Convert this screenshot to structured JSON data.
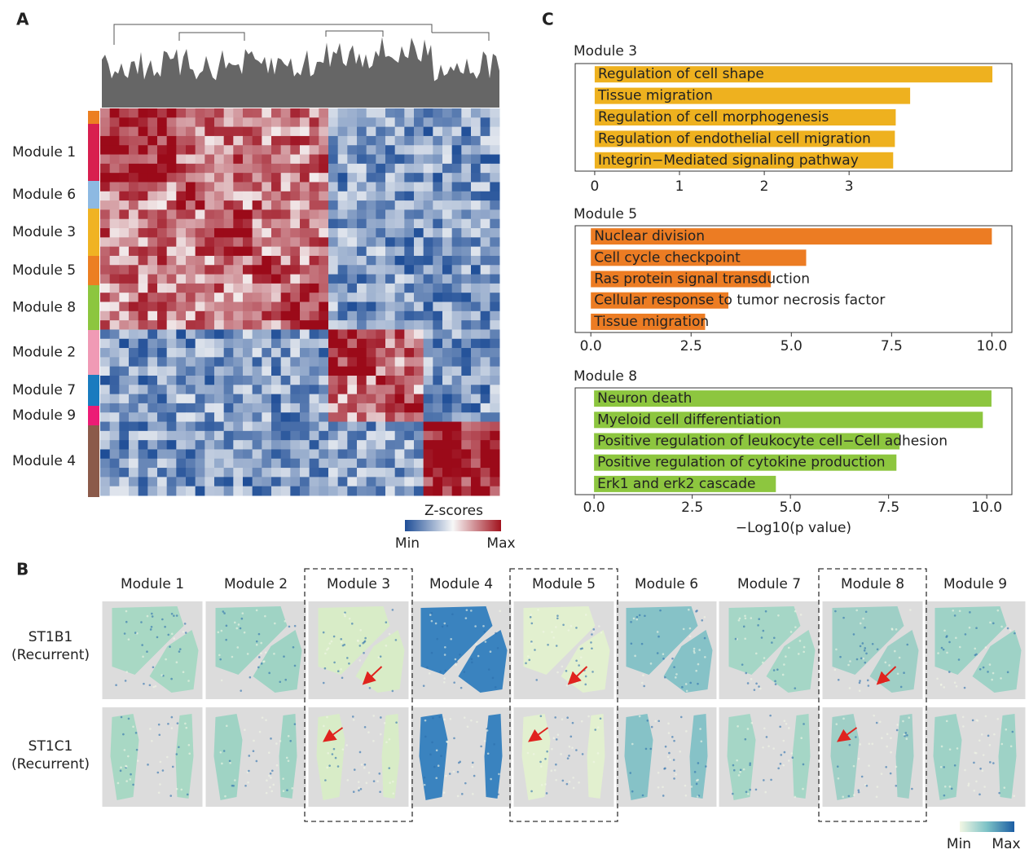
{
  "panel_labels": [
    "A",
    "B",
    "C"
  ],
  "heatmap": {
    "module_labels": [
      "Module 1",
      "Module 6",
      "Module 3",
      "Module 5",
      "Module 8",
      "Module 2",
      "Module 7",
      "Module 9",
      "Module 4"
    ],
    "module_colors": [
      "#d81f4f",
      "#8db9e2",
      "#f0b323",
      "#ec7f22",
      "#8cc63f",
      "#f09ab5",
      "#1a7bbf",
      "#ec1c75",
      "#8b5a4a"
    ],
    "colorbar_title": "Z-scores",
    "colorbar_min": "Min",
    "colorbar_max": "Max"
  },
  "spatial": {
    "modules": [
      "Module 1",
      "Module 2",
      "Module 3",
      "Module 4",
      "Module 5",
      "Module 6",
      "Module 7",
      "Module 8",
      "Module 9"
    ],
    "samples": [
      {
        "id": "ST1B1",
        "note": "(Recurrent)"
      },
      {
        "id": "ST1C1",
        "note": "(Recurrent)"
      }
    ],
    "colorbar_min": "Min",
    "colorbar_max": "Max"
  },
  "chart_data": [
    {
      "type": "bar",
      "orientation": "horizontal",
      "title": "Module 3",
      "color": "#eeb11f",
      "categories": [
        "Regulation of cell shape",
        "Tissue migration",
        "Regulation of cell morphogenesis",
        "Regulation of endothelial cell migration",
        "Integrin−Mediated signaling pathway"
      ],
      "values": [
        4.69,
        3.72,
        3.55,
        3.54,
        3.52
      ],
      "xlim": [
        -0.23,
        4.92
      ],
      "xticks": [
        0,
        1,
        2,
        3
      ]
    },
    {
      "type": "bar",
      "orientation": "horizontal",
      "title": "Module 5",
      "color": "#ec7c23",
      "categories": [
        "Nuclear division",
        "Cell cycle checkpoint",
        "Ras protein signal transduction",
        "Cellular response to tumor necrosis factor",
        "Tissue migration"
      ],
      "values": [
        10.0,
        5.37,
        4.49,
        3.43,
        2.85
      ],
      "xlim": [
        -0.39,
        10.5
      ],
      "xticks": [
        {
          "value": 0,
          "label": "0.0"
        },
        2.5,
        {
          "value": 5,
          "label": "5.0"
        },
        7.5,
        {
          "value": 10,
          "label": "10.0"
        }
      ]
    },
    {
      "type": "bar",
      "orientation": "horizontal",
      "title": "Module 8",
      "color": "#8dc63f",
      "categories": [
        "Neuron death",
        "Myeloid cell differentiation",
        "Positive regulation of leukocyte cell−Cell adhesion",
        "Positive regulation of cytokine production",
        "Erk1 and erk2 cascade"
      ],
      "values": [
        10.12,
        9.9,
        7.78,
        7.7,
        4.63
      ],
      "xlim": [
        -0.48,
        10.64
      ],
      "xticks": [
        {
          "value": 0,
          "label": "0.0"
        },
        2.5,
        {
          "value": 5,
          "label": "5.0"
        },
        7.5,
        {
          "value": 10,
          "label": "10.0"
        }
      ],
      "xlabel": "−Log10(p value)"
    }
  ]
}
